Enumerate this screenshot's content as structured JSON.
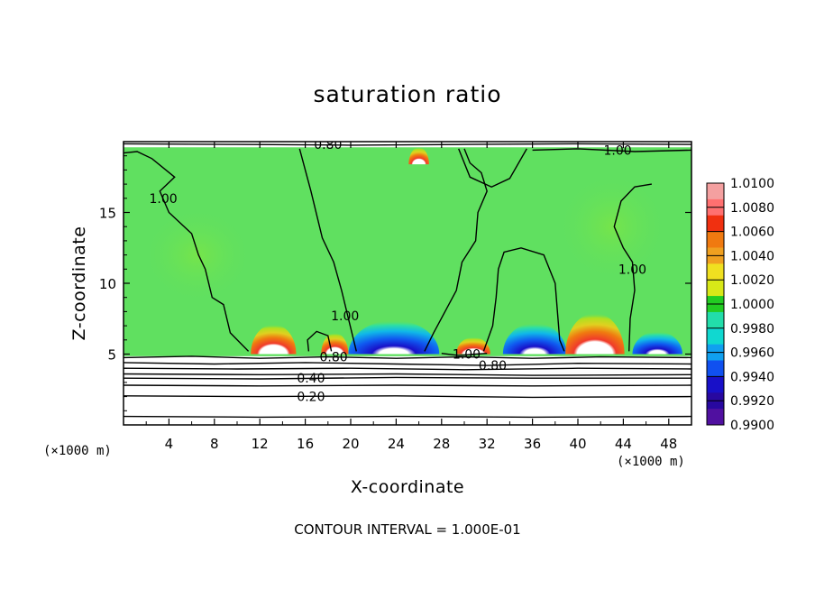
{
  "chart_data": {
    "type": "heatmap",
    "title": "saturation ratio",
    "xlabel": "X-coordinate",
    "ylabel": "Z-coordinate",
    "x_unit": "(×1000 m)",
    "z_unit": "(×1000 m)",
    "xlim": [
      0,
      50
    ],
    "ylim": [
      0,
      20
    ],
    "x_ticks": [
      4,
      8,
      12,
      16,
      20,
      24,
      28,
      32,
      36,
      40,
      44,
      48
    ],
    "y_ticks": [
      5,
      10,
      15
    ],
    "footnote": "CONTOUR INTERVAL = 1.000E-01",
    "colorbar": {
      "levels": [
        "1.0100",
        "1.0080",
        "1.0060",
        "1.0040",
        "1.0020",
        "1.0000",
        "0.9980",
        "0.9960",
        "0.9940",
        "0.9920",
        "0.9900"
      ],
      "colors": [
        "#f4a0a0",
        "#ff7070",
        "#f03010",
        "#f07a10",
        "#f0a020",
        "#f0e020",
        "#d8e818",
        "#22cc22",
        "#22ddaa",
        "#10d8d0",
        "#10a0f0",
        "#1050f0",
        "#1810c8",
        "#2808a0",
        "#5010a0"
      ]
    },
    "background_field": {
      "value": 1.0,
      "color": "#60e060"
    },
    "blobs": [
      {
        "x": 13.2,
        "z": 5.0,
        "rx": 2.0,
        "rz": 2.1,
        "kind": "warm"
      },
      {
        "x": 18.6,
        "z": 5.0,
        "rx": 1.2,
        "rz": 1.5,
        "kind": "warm"
      },
      {
        "x": 23.8,
        "z": 5.0,
        "rx": 4.0,
        "rz": 2.4,
        "kind": "cool"
      },
      {
        "x": 30.8,
        "z": 5.0,
        "rx": 1.5,
        "rz": 1.2,
        "kind": "warm"
      },
      {
        "x": 36.2,
        "z": 5.0,
        "rx": 2.8,
        "rz": 2.2,
        "kind": "cool"
      },
      {
        "x": 41.5,
        "z": 5.0,
        "rx": 2.6,
        "rz": 2.9,
        "kind": "warm"
      },
      {
        "x": 47.0,
        "z": 5.0,
        "rx": 2.2,
        "rz": 1.6,
        "kind": "cool"
      },
      {
        "x": 26.0,
        "z": 18.4,
        "rx": 0.9,
        "rz": 1.2,
        "kind": "warm"
      },
      {
        "x": 6.5,
        "z": 12.0,
        "rx": 5.0,
        "rz": 3.5,
        "kind": "faint"
      },
      {
        "x": 43.0,
        "z": 14.0,
        "rx": 5.0,
        "rz": 4.0,
        "kind": "faint"
      }
    ],
    "contour_lines": [
      {
        "level": 1.0,
        "label": "1.00",
        "label_at": [
          3.5,
          16.0
        ],
        "points": [
          [
            0,
            19.2
          ],
          [
            1.2,
            19.3
          ],
          [
            2.5,
            18.8
          ],
          [
            4.5,
            17.5
          ],
          [
            3.2,
            16.5
          ],
          [
            4,
            15
          ],
          [
            6,
            13.5
          ],
          [
            6.6,
            12
          ],
          [
            7.2,
            11
          ],
          [
            7.8,
            9
          ],
          [
            8.8,
            8.5
          ],
          [
            9.4,
            6.5
          ],
          [
            11,
            5.2
          ]
        ]
      },
      {
        "level": 1.0,
        "label": "1.00",
        "label_at": [
          19.5,
          7.7
        ],
        "points": [
          [
            15.5,
            19.5
          ],
          [
            16.5,
            16.5
          ],
          [
            17.5,
            13.2
          ],
          [
            18.5,
            11.5
          ],
          [
            19.2,
            9.5
          ],
          [
            19.8,
            7.5
          ],
          [
            20.5,
            5.2
          ]
        ]
      },
      {
        "level": 1.0,
        "label": "",
        "label_at": null,
        "points": [
          [
            16.3,
            5.2
          ],
          [
            16.2,
            6.0
          ],
          [
            17.0,
            6.6
          ],
          [
            18.0,
            6.3
          ],
          [
            18.3,
            5.2
          ]
        ]
      },
      {
        "level": 1.0,
        "label": "",
        "label_at": null,
        "points": [
          [
            26.5,
            5.2
          ],
          [
            27.3,
            6.5
          ],
          [
            28.3,
            8
          ],
          [
            29.3,
            9.5
          ],
          [
            29.8,
            11.5
          ],
          [
            31,
            13
          ],
          [
            31.2,
            15
          ],
          [
            32,
            16.5
          ],
          [
            31.5,
            17.8
          ],
          [
            30.5,
            18.5
          ],
          [
            30,
            19.5
          ]
        ]
      },
      {
        "level": 1.0,
        "label": "",
        "label_at": null,
        "points": [
          [
            31.7,
            5.2
          ],
          [
            32.5,
            7
          ],
          [
            32.8,
            9
          ],
          [
            33,
            11
          ],
          [
            33.5,
            12.2
          ],
          [
            35,
            12.5
          ],
          [
            37,
            12
          ],
          [
            38,
            10
          ],
          [
            38.2,
            8
          ],
          [
            38.4,
            6
          ],
          [
            38.8,
            5.2
          ]
        ]
      },
      {
        "level": 1.0,
        "label": "",
        "label_at": null,
        "points": [
          [
            29.5,
            19.5
          ],
          [
            30.5,
            17.5
          ],
          [
            32.4,
            16.8
          ],
          [
            34,
            17.4
          ],
          [
            35.5,
            19.5
          ]
        ]
      },
      {
        "level": 1.0,
        "label": "1.00",
        "label_at": [
          44.8,
          11.0
        ],
        "points": [
          [
            46.5,
            17
          ],
          [
            45.0,
            16.8
          ],
          [
            43.8,
            15.8
          ],
          [
            43.2,
            14.0
          ],
          [
            44.0,
            12.5
          ],
          [
            44.8,
            11.5
          ],
          [
            45.0,
            9.5
          ],
          [
            44.6,
            7.5
          ],
          [
            44.5,
            5.2
          ]
        ]
      },
      {
        "level": 1.0,
        "label": "1.00",
        "label_at": [
          30.2,
          5.0
        ],
        "points": [
          [
            28,
            5.05
          ],
          [
            29.5,
            4.9
          ],
          [
            31,
            5.0
          ],
          [
            32,
            5.05
          ]
        ]
      },
      {
        "level": 1.0,
        "label": "1.00",
        "label_at": [
          43.5,
          19.4
        ],
        "points": [
          [
            36,
            19.4
          ],
          [
            40,
            19.5
          ],
          [
            45,
            19.3
          ],
          [
            50,
            19.4
          ]
        ]
      },
      {
        "level": 0.8,
        "label": "0.80",
        "label_at": [
          18.0,
          19.8
        ],
        "points": [
          [
            0,
            19.85
          ],
          [
            10,
            19.8
          ],
          [
            20,
            19.75
          ],
          [
            30,
            19.8
          ],
          [
            40,
            19.85
          ],
          [
            50,
            19.8
          ]
        ]
      },
      {
        "level": 0.8,
        "label": "0.80",
        "label_at": [
          18.5,
          4.8
        ],
        "points": [
          [
            0,
            4.75
          ],
          [
            6,
            4.85
          ],
          [
            12,
            4.7
          ],
          [
            18,
            4.8
          ],
          [
            24,
            4.7
          ],
          [
            30,
            4.8
          ],
          [
            36,
            4.7
          ],
          [
            42,
            4.8
          ],
          [
            50,
            4.75
          ]
        ]
      },
      {
        "level": 0.8,
        "label": "0.80",
        "label_at": [
          32.5,
          4.2
        ],
        "points": [
          [
            0,
            4.4
          ],
          [
            8,
            4.3
          ],
          [
            16,
            4.4
          ],
          [
            24,
            4.3
          ],
          [
            32,
            4.2
          ],
          [
            40,
            4.35
          ],
          [
            50,
            4.3
          ]
        ]
      },
      {
        "level": 0.7,
        "label": "",
        "label_at": null,
        "points": [
          [
            0,
            4.0
          ],
          [
            10,
            3.95
          ],
          [
            20,
            4.0
          ],
          [
            30,
            3.9
          ],
          [
            40,
            4.0
          ],
          [
            50,
            3.95
          ]
        ]
      },
      {
        "level": 0.5,
        "label": "",
        "label_at": null,
        "points": [
          [
            0,
            3.6
          ],
          [
            12,
            3.55
          ],
          [
            24,
            3.6
          ],
          [
            36,
            3.5
          ],
          [
            50,
            3.55
          ]
        ]
      },
      {
        "level": 0.4,
        "label": "0.40",
        "label_at": [
          16.5,
          3.3
        ],
        "points": [
          [
            0,
            3.3
          ],
          [
            12,
            3.25
          ],
          [
            24,
            3.35
          ],
          [
            36,
            3.3
          ],
          [
            50,
            3.3
          ]
        ]
      },
      {
        "level": 0.3,
        "label": "",
        "label_at": null,
        "points": [
          [
            0,
            2.8
          ],
          [
            12,
            2.75
          ],
          [
            24,
            2.8
          ],
          [
            36,
            2.75
          ],
          [
            50,
            2.8
          ]
        ]
      },
      {
        "level": 0.2,
        "label": "0.20",
        "label_at": [
          16.5,
          2.0
        ],
        "points": [
          [
            0,
            2.05
          ],
          [
            12,
            2.0
          ],
          [
            24,
            2.05
          ],
          [
            36,
            1.95
          ],
          [
            50,
            2.0
          ]
        ]
      },
      {
        "level": 0.1,
        "label": "",
        "label_at": null,
        "points": [
          [
            0,
            0.6
          ],
          [
            12,
            0.55
          ],
          [
            24,
            0.6
          ],
          [
            36,
            0.55
          ],
          [
            50,
            0.6
          ]
        ]
      }
    ]
  }
}
